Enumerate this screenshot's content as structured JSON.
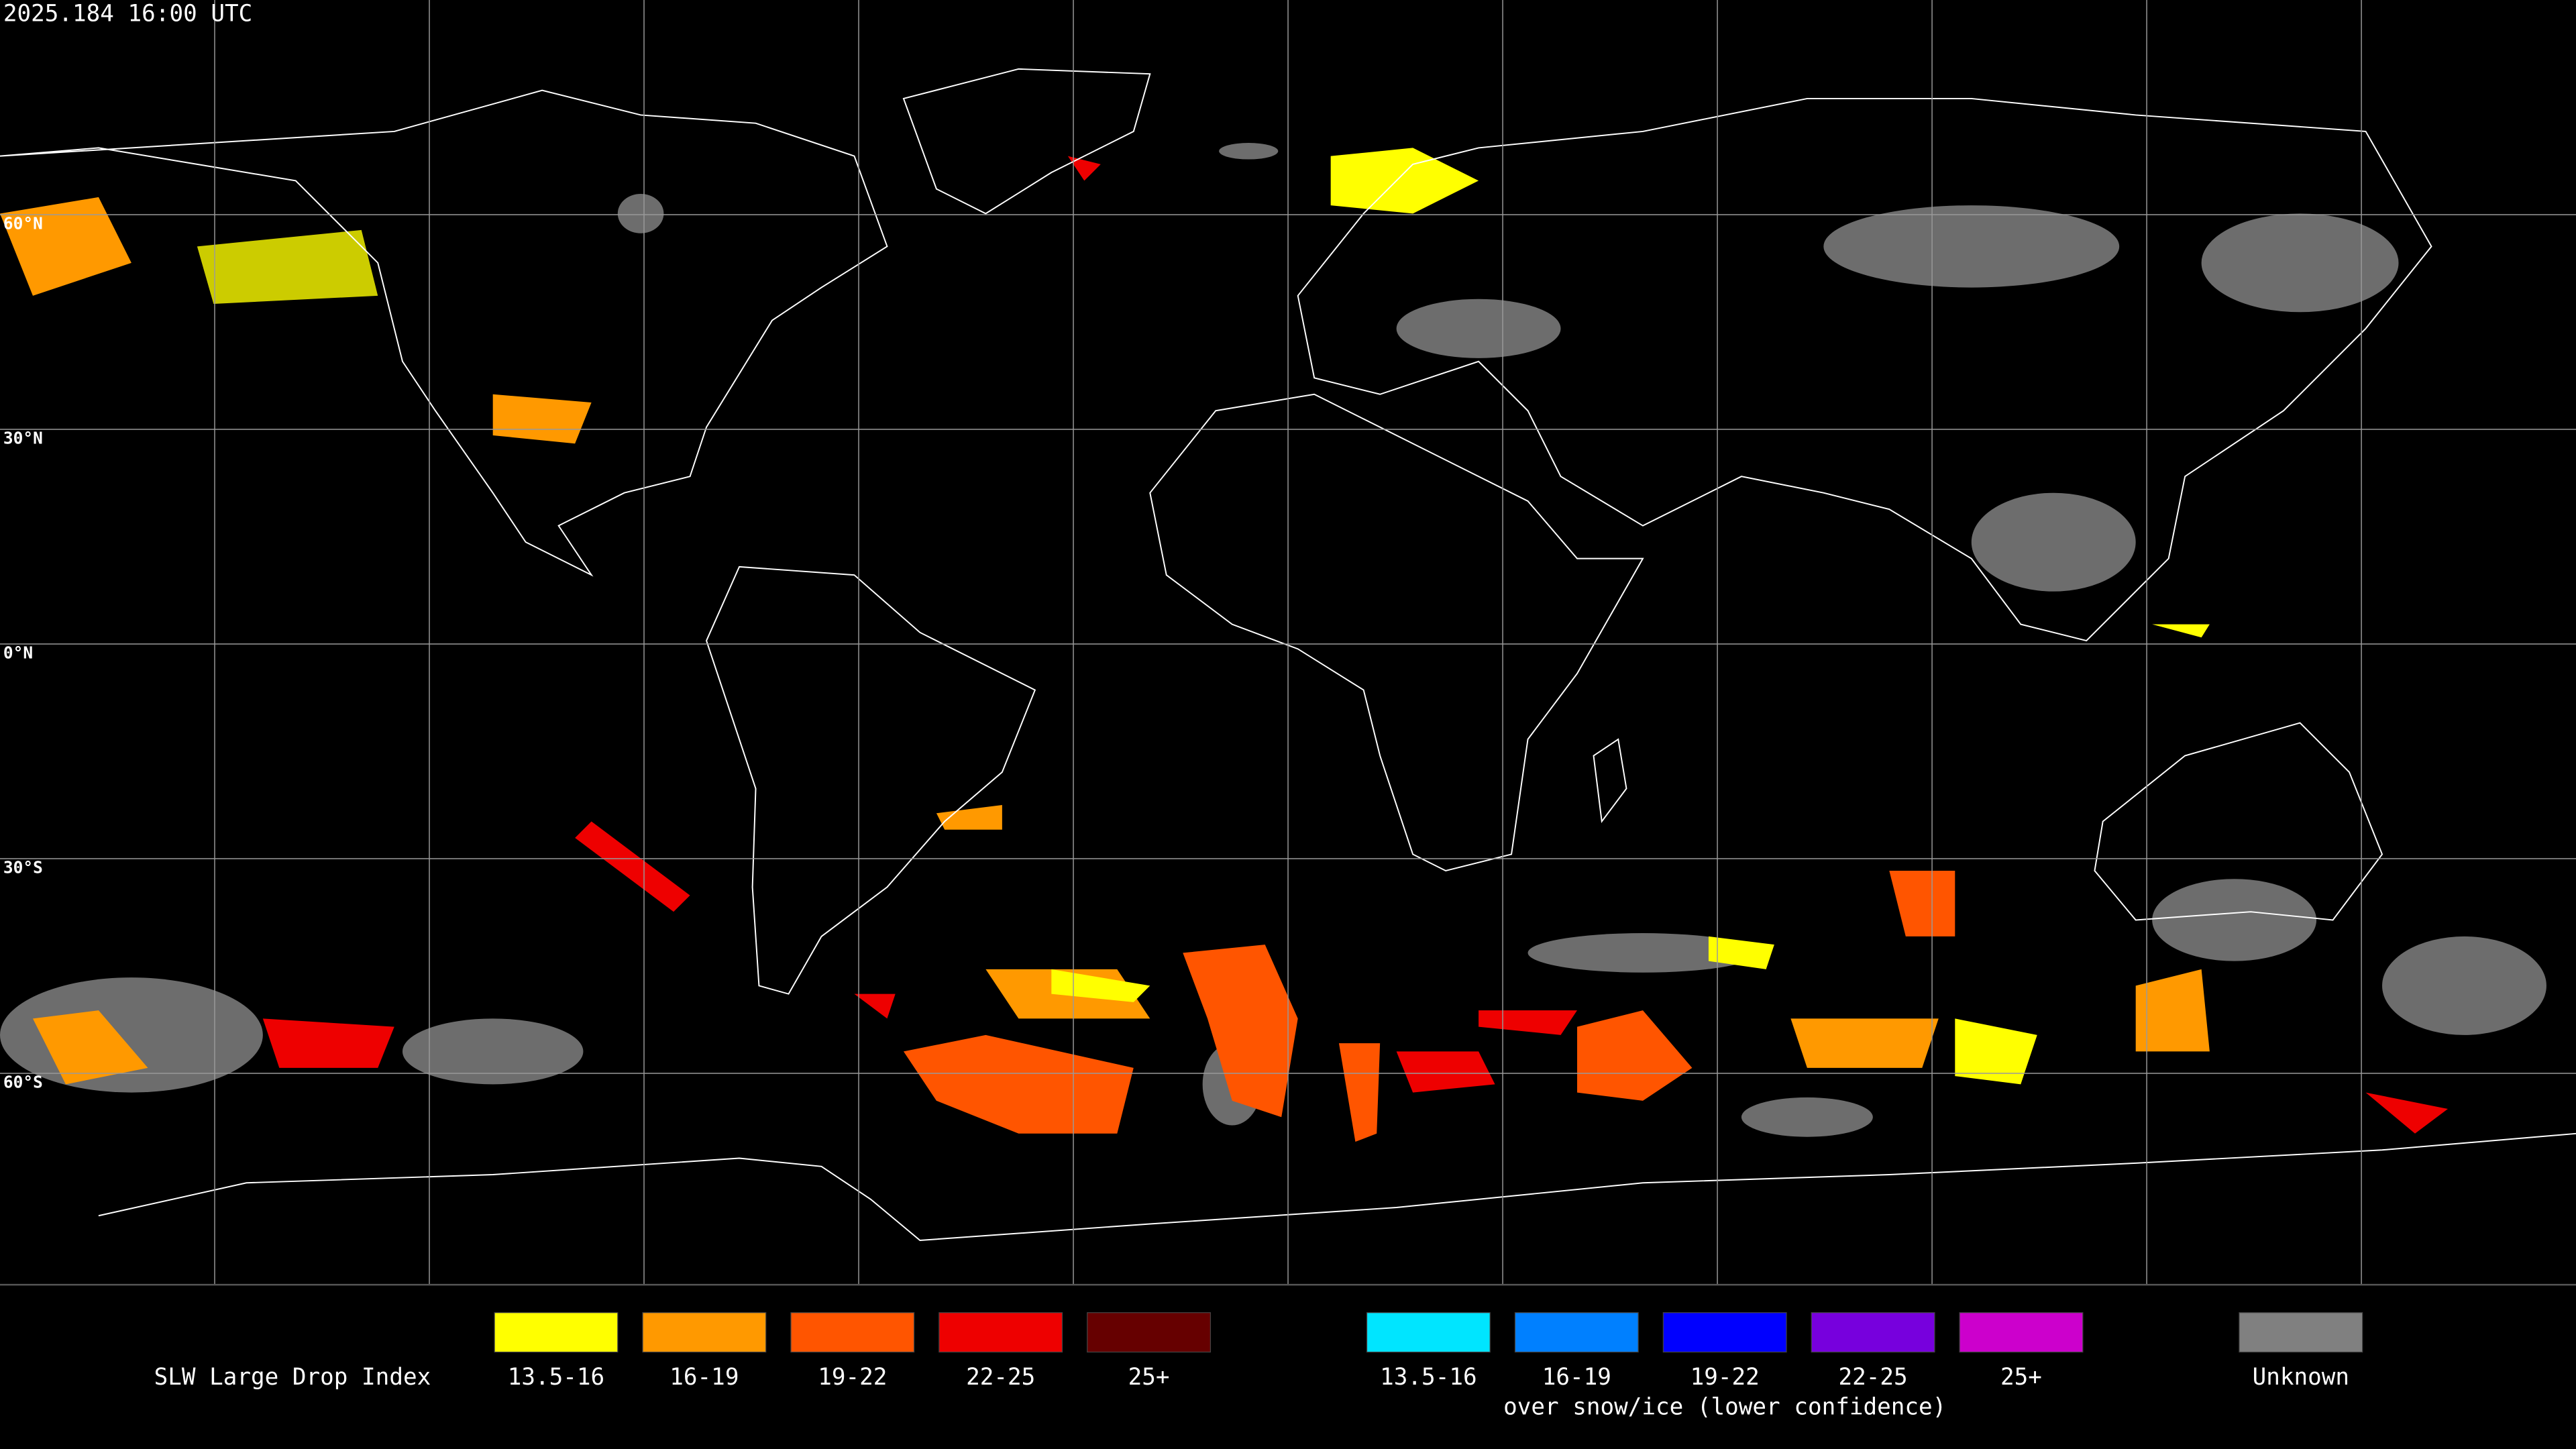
{
  "timestamp": "2025.184 16:00 UTC",
  "latitude_labels": [
    "60°N",
    "30°N",
    "0°N",
    "30°S",
    "60°S"
  ],
  "legend": {
    "title": "SLW Large Drop Index",
    "groups": [
      {
        "items": [
          {
            "label": "13.5-16",
            "color": "#ffff00"
          },
          {
            "label": "16-19",
            "color": "#ff9900"
          },
          {
            "label": "19-22",
            "color": "#ff5500"
          },
          {
            "label": "22-25",
            "color": "#ee0000"
          },
          {
            "label": "25+",
            "color": "#660000"
          }
        ]
      },
      {
        "items": [
          {
            "label": "13.5-16",
            "color": "#00e5ff"
          },
          {
            "label": "16-19",
            "color": "#0080ff"
          },
          {
            "label": "19-22",
            "color": "#0000ff"
          },
          {
            "label": "22-25",
            "color": "#7700dd"
          },
          {
            "label": "25+",
            "color": "#cc00cc"
          }
        ],
        "caption": "over snow/ice (lower confidence)"
      }
    ],
    "unknown": {
      "label": "Unknown",
      "color": "#808080"
    }
  }
}
